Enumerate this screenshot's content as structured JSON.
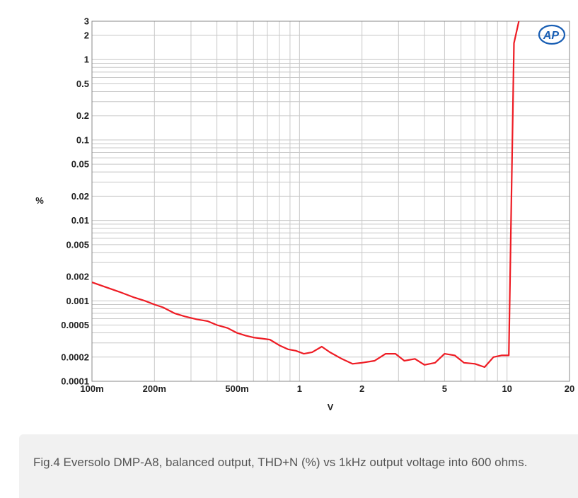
{
  "chart_data": {
    "type": "line",
    "xlabel": "V",
    "ylabel": "%",
    "x_scale": "log",
    "y_scale": "log",
    "xlim": [
      0.1,
      20
    ],
    "ylim": [
      0.0001,
      3
    ],
    "x_ticks": [
      {
        "value": 0.1,
        "label": "100m"
      },
      {
        "value": 0.2,
        "label": "200m"
      },
      {
        "value": 0.5,
        "label": "500m"
      },
      {
        "value": 1,
        "label": "1"
      },
      {
        "value": 2,
        "label": "2"
      },
      {
        "value": 5,
        "label": "5"
      },
      {
        "value": 10,
        "label": "10"
      },
      {
        "value": 20,
        "label": "20"
      }
    ],
    "y_ticks": [
      {
        "value": 3,
        "label": "3"
      },
      {
        "value": 2,
        "label": "2"
      },
      {
        "value": 1,
        "label": "1"
      },
      {
        "value": 0.5,
        "label": "0.5"
      },
      {
        "value": 0.2,
        "label": "0.2"
      },
      {
        "value": 0.1,
        "label": "0.1"
      },
      {
        "value": 0.05,
        "label": "0.05"
      },
      {
        "value": 0.02,
        "label": "0.02"
      },
      {
        "value": 0.01,
        "label": "0.01"
      },
      {
        "value": 0.005,
        "label": "0.005"
      },
      {
        "value": 0.002,
        "label": "0.002"
      },
      {
        "value": 0.001,
        "label": "0.001"
      },
      {
        "value": 0.0005,
        "label": "0.0005"
      },
      {
        "value": 0.0002,
        "label": "0.0002"
      },
      {
        "value": 0.0001,
        "label": "0.0001"
      }
    ],
    "grid": true,
    "series": [
      {
        "color": "#ee1c24",
        "x": [
          0.1,
          0.115,
          0.135,
          0.16,
          0.18,
          0.2,
          0.22,
          0.25,
          0.28,
          0.32,
          0.36,
          0.4,
          0.45,
          0.5,
          0.55,
          0.6,
          0.66,
          0.72,
          0.8,
          0.88,
          0.96,
          1.05,
          1.15,
          1.28,
          1.4,
          1.6,
          1.8,
          2.0,
          2.3,
          2.6,
          2.9,
          3.2,
          3.6,
          4.0,
          4.5,
          5.0,
          5.6,
          6.2,
          7.0,
          7.8,
          8.6,
          9.4,
          10.2,
          10.8,
          11.4
        ],
        "y": [
          0.0017,
          0.0015,
          0.0013,
          0.0011,
          0.001,
          0.0009,
          0.00083,
          0.0007,
          0.00064,
          0.00059,
          0.00056,
          0.0005,
          0.00046,
          0.0004,
          0.00037,
          0.00035,
          0.00034,
          0.00033,
          0.00028,
          0.00025,
          0.00024,
          0.00022,
          0.00023,
          0.00027,
          0.00023,
          0.00019,
          0.000165,
          0.00017,
          0.00018,
          0.00022,
          0.00022,
          0.00018,
          0.00019,
          0.00016,
          0.00017,
          0.00022,
          0.00021,
          0.00017,
          0.000165,
          0.00015,
          0.0002,
          0.00021,
          0.00021,
          1.6,
          3
        ]
      }
    ]
  },
  "logo": {
    "text": "AP",
    "color": "#1a5fb4"
  },
  "caption": "Fig.4 Eversolo DMP-A8, balanced output, THD+N (%) vs 1kHz output voltage into 600 ohms."
}
